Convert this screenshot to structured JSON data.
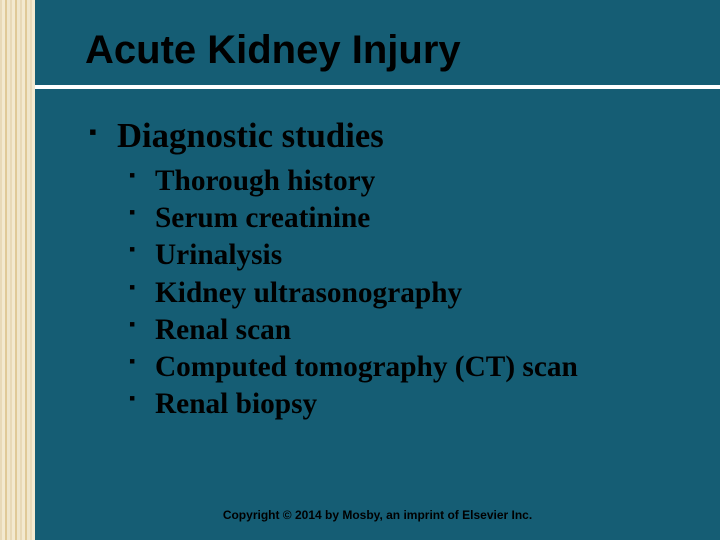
{
  "slide": {
    "background_color": "#155d74",
    "stripe_colors": [
      "#e8d9b8",
      "#f3e9d0",
      "#e0c998",
      "#f0e6cc"
    ],
    "divider_color": "#ffffff",
    "text_color": "#000000",
    "title": {
      "text": "Acute Kidney Injury",
      "font_family": "Arial",
      "font_weight": "bold",
      "font_size_pt": 30
    },
    "heading": {
      "text": "Diagnostic studies",
      "font_family": "Georgia",
      "font_weight": "bold",
      "font_size_pt": 26,
      "bullet": "square"
    },
    "items": [
      "Thorough history",
      "Serum creatinine",
      "Urinalysis",
      "Kidney ultrasonography",
      "Renal scan",
      "Computed tomography (CT) scan",
      "Renal biopsy"
    ],
    "item_style": {
      "font_family": "Georgia",
      "font_weight": "bold",
      "font_size_pt": 22,
      "bullet": "square"
    },
    "footer": {
      "text": "Copyright © 2014 by Mosby, an imprint of Elsevier Inc.",
      "font_family": "Arial",
      "font_weight": "bold",
      "font_size_pt": 9
    }
  }
}
